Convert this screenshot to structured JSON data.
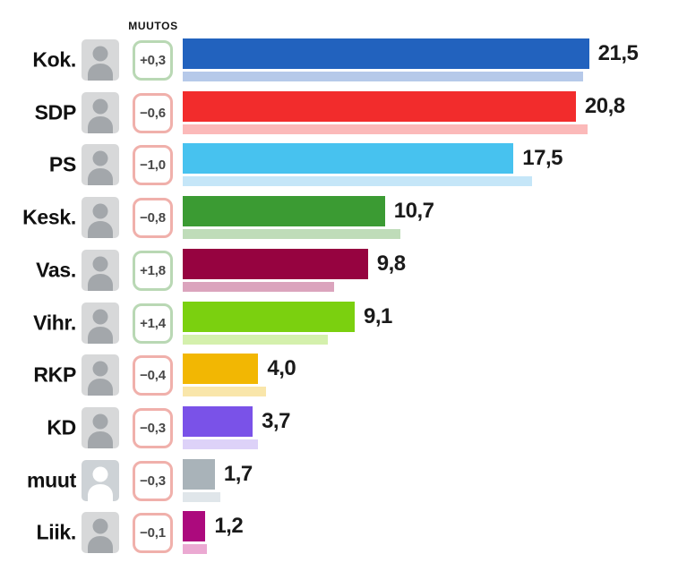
{
  "header": {
    "change_column_label": "MUUTOS"
  },
  "styles": {
    "positive_border": "#b9d8b4",
    "negative_border": "#f0b0ab",
    "value_text_color": "#1a1a1a",
    "change_text_color": "#474747"
  },
  "chart_data": {
    "type": "bar",
    "orientation": "horizontal",
    "unit": "% party support",
    "note_prev_bar": "light bar below each main bar shows previous value (value minus change)",
    "xlim": [
      0,
      24
    ],
    "rows": [
      {
        "party": "Kok.",
        "value": 21.5,
        "value_label": "21,5",
        "change": 0.3,
        "change_label": "+0,3",
        "previous": 21.2,
        "color": "#2262be",
        "color_light": "#b6c9e9",
        "photo": true,
        "avatar": "person-photo"
      },
      {
        "party": "SDP",
        "value": 20.8,
        "value_label": "20,8",
        "change": -0.6,
        "change_label": "−0,6",
        "previous": 21.4,
        "color": "#f22c2c",
        "color_light": "#fbb9b9",
        "photo": true,
        "avatar": "person-photo"
      },
      {
        "party": "PS",
        "value": 17.5,
        "value_label": "17,5",
        "change": -1.0,
        "change_label": "−1,0",
        "previous": 18.5,
        "color": "#47c2ef",
        "color_light": "#c5e6f8",
        "photo": true,
        "avatar": "person-photo"
      },
      {
        "party": "Kesk.",
        "value": 10.7,
        "value_label": "10,7",
        "change": -0.8,
        "change_label": "−0,8",
        "previous": 11.5,
        "color": "#3b9b33",
        "color_light": "#bfdcb9",
        "photo": true,
        "avatar": "person-photo"
      },
      {
        "party": "Vas.",
        "value": 9.8,
        "value_label": "9,8",
        "change": 1.8,
        "change_label": "+1,8",
        "previous": 8.0,
        "color": "#960340",
        "color_light": "#dba4bd",
        "photo": true,
        "avatar": "person-photo"
      },
      {
        "party": "Vihr.",
        "value": 9.1,
        "value_label": "9,1",
        "change": 1.4,
        "change_label": "+1,4",
        "previous": 7.7,
        "color": "#7bd00f",
        "color_light": "#d4f0ac",
        "photo": true,
        "avatar": "person-photo"
      },
      {
        "party": "RKP",
        "value": 4.0,
        "value_label": "4,0",
        "change": -0.4,
        "change_label": "−0,4",
        "previous": 4.4,
        "color": "#f2b703",
        "color_light": "#f9e6aa",
        "photo": true,
        "avatar": "person-photo"
      },
      {
        "party": "KD",
        "value": 3.7,
        "value_label": "3,7",
        "change": -0.3,
        "change_label": "−0,3",
        "previous": 4.0,
        "color": "#7a52e8",
        "color_light": "#ddd2f8",
        "photo": true,
        "avatar": "person-photo"
      },
      {
        "party": "muut",
        "value": 1.7,
        "value_label": "1,7",
        "change": -0.3,
        "change_label": "−0,3",
        "previous": 2.0,
        "color": "#a9b3b9",
        "color_light": "#e0e6ea",
        "photo": false,
        "avatar": "generic-person-silhouette"
      },
      {
        "party": "Liik.",
        "value": 1.2,
        "value_label": "1,2",
        "change": -0.1,
        "change_label": "−0,1",
        "previous": 1.3,
        "color": "#ac0a7d",
        "color_light": "#eba9d2",
        "photo": true,
        "avatar": "person-photo"
      }
    ]
  }
}
